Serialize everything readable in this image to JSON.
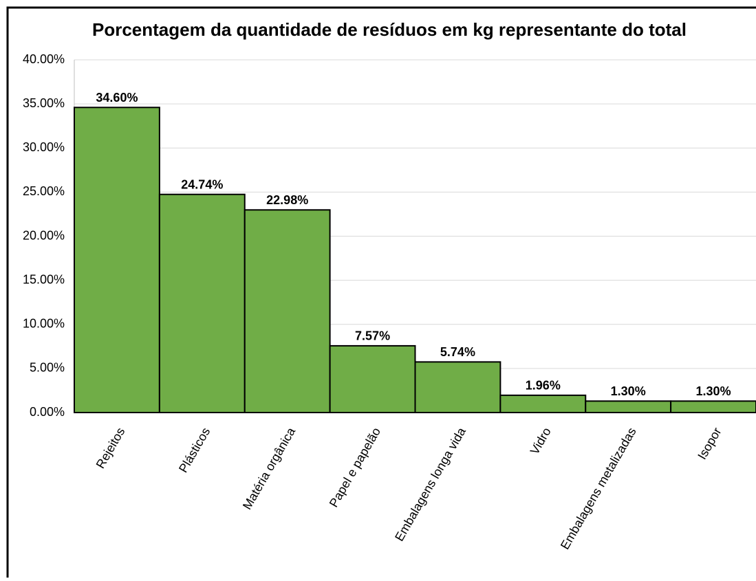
{
  "chart_data": {
    "type": "bar",
    "title": "Porcentagem da quantidade de resíduos em kg representante do total",
    "categories": [
      "Rejeitos",
      "Plásticos",
      "Matéria orgânica",
      "Papel e papelão",
      "Embalagens longa vida",
      "Vidro",
      "Embalagens metalizadas",
      "Isopor"
    ],
    "values": [
      34.6,
      24.74,
      22.98,
      7.57,
      5.74,
      1.96,
      1.3,
      1.3
    ],
    "value_labels": [
      "34.60%",
      "24.74%",
      "22.98%",
      "7.57%",
      "5.74%",
      "1.96%",
      "1.30%",
      "1.30%"
    ],
    "color": "#70ad47",
    "ylim": [
      0,
      40
    ],
    "yticks": [
      {
        "value": 0,
        "label": "0.00%"
      },
      {
        "value": 5,
        "label": "5.00%"
      },
      {
        "value": 10,
        "label": "10.00%"
      },
      {
        "value": 15,
        "label": "15.00%"
      },
      {
        "value": 20,
        "label": "20.00%"
      },
      {
        "value": 25,
        "label": "25.00%"
      },
      {
        "value": 30,
        "label": "30.00%"
      },
      {
        "value": 35,
        "label": "35.00%"
      },
      {
        "value": 40,
        "label": "40.00%"
      }
    ],
    "grid": true
  }
}
